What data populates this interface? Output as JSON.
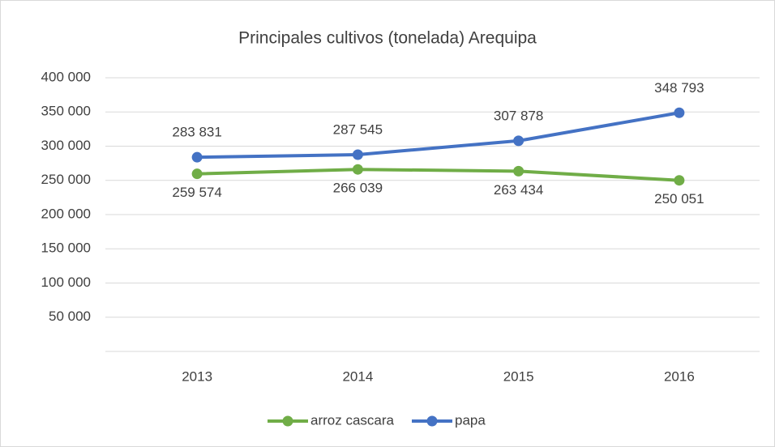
{
  "chart_data": {
    "type": "line",
    "title": "Principales cultivos (tonelada) Arequipa",
    "categories": [
      "2013",
      "2014",
      "2015",
      "2016"
    ],
    "series": [
      {
        "name": "arroz cascara",
        "color": "#70ad47",
        "values": [
          259574,
          266039,
          263434,
          250051
        ],
        "value_labels": [
          "259 574",
          "266 039",
          "263 434",
          "250 051"
        ]
      },
      {
        "name": "papa",
        "color": "#4472c4",
        "values": [
          283831,
          287545,
          307878,
          348793
        ],
        "value_labels": [
          "283 831",
          "287 545",
          "307 878",
          "348 793"
        ]
      }
    ],
    "ylim": [
      0,
      400000
    ],
    "yticks": [
      {
        "value": 50000,
        "label": "50 000"
      },
      {
        "value": 100000,
        "label": "100 000"
      },
      {
        "value": 150000,
        "label": "150 000"
      },
      {
        "value": 200000,
        "label": "200 000"
      },
      {
        "value": 250000,
        "label": "250 000"
      },
      {
        "value": 300000,
        "label": "300 000"
      },
      {
        "value": 350000,
        "label": "350 000"
      },
      {
        "value": 400000,
        "label": "400 000"
      }
    ],
    "grid": true,
    "legend": "bottom"
  }
}
